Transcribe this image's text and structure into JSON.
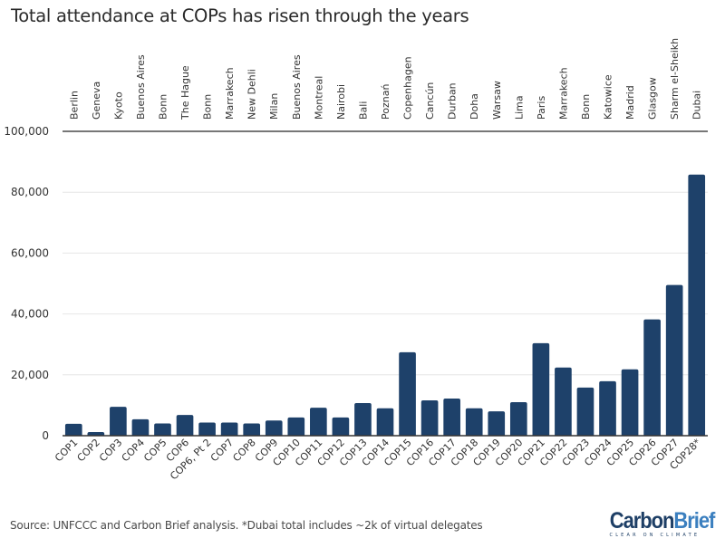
{
  "title": "Total attendance at COPs has risen through the years",
  "source": "Source: UNFCCC and Carbon Brief analysis. *Dubai total includes ~2k of virtual delegates",
  "logo": {
    "carbon": "Carbon",
    "brief": "Brief",
    "tagline": "CLEAR ON CLIMATE"
  },
  "colors": {
    "bar": "#1e416a",
    "grid": "#e6e6e6",
    "axis": "#666666",
    "text": "#333333"
  },
  "chart_data": {
    "type": "bar",
    "title": "Total attendance at COPs has risen through the years",
    "xlabel": "",
    "ylabel": "",
    "ylim": [
      0,
      100000
    ],
    "yticks": [
      0,
      20000,
      40000,
      60000,
      80000,
      100000
    ],
    "ytick_labels": [
      "0",
      "20,000",
      "40,000",
      "60,000",
      "80,000",
      "100,000"
    ],
    "grid": true,
    "categories": [
      "COP1",
      "COP2",
      "COP3",
      "COP4",
      "COP5",
      "COP6",
      "COP6, Pt 2",
      "COP7",
      "COP8",
      "COP9",
      "COP10",
      "COP11",
      "COP12",
      "COP13",
      "COP14",
      "COP15",
      "COP16",
      "COP17",
      "COP18",
      "COP19",
      "COP20",
      "COP21",
      "COP22",
      "COP23",
      "COP24",
      "COP25",
      "COP26",
      "COP27",
      "COP28*"
    ],
    "locations": [
      "Berlin",
      "Geneva",
      "Kyoto",
      "Buenos Aires",
      "Bonn",
      "The Hague",
      "Bonn",
      "Marrakech",
      "New Dehli",
      "Milan",
      "Buenos Aires",
      "Montreal",
      "Nairobi",
      "Bali",
      "Poznań",
      "Copenhagen",
      "Cancún",
      "Durban",
      "Doha",
      "Warsaw",
      "Lima",
      "Paris",
      "Marrakech",
      "Bonn",
      "Katowice",
      "Madrid",
      "Glasgow",
      "Sharm el-Sheikh",
      "Dubai"
    ],
    "values": [
      3900,
      1200,
      9500,
      5400,
      4000,
      6800,
      4300,
      4300,
      4000,
      5000,
      6000,
      9200,
      6000,
      10700,
      9000,
      27400,
      11600,
      12200,
      9000,
      8000,
      11000,
      30400,
      22400,
      15800,
      17900,
      21800,
      38200,
      49500,
      85800
    ]
  }
}
